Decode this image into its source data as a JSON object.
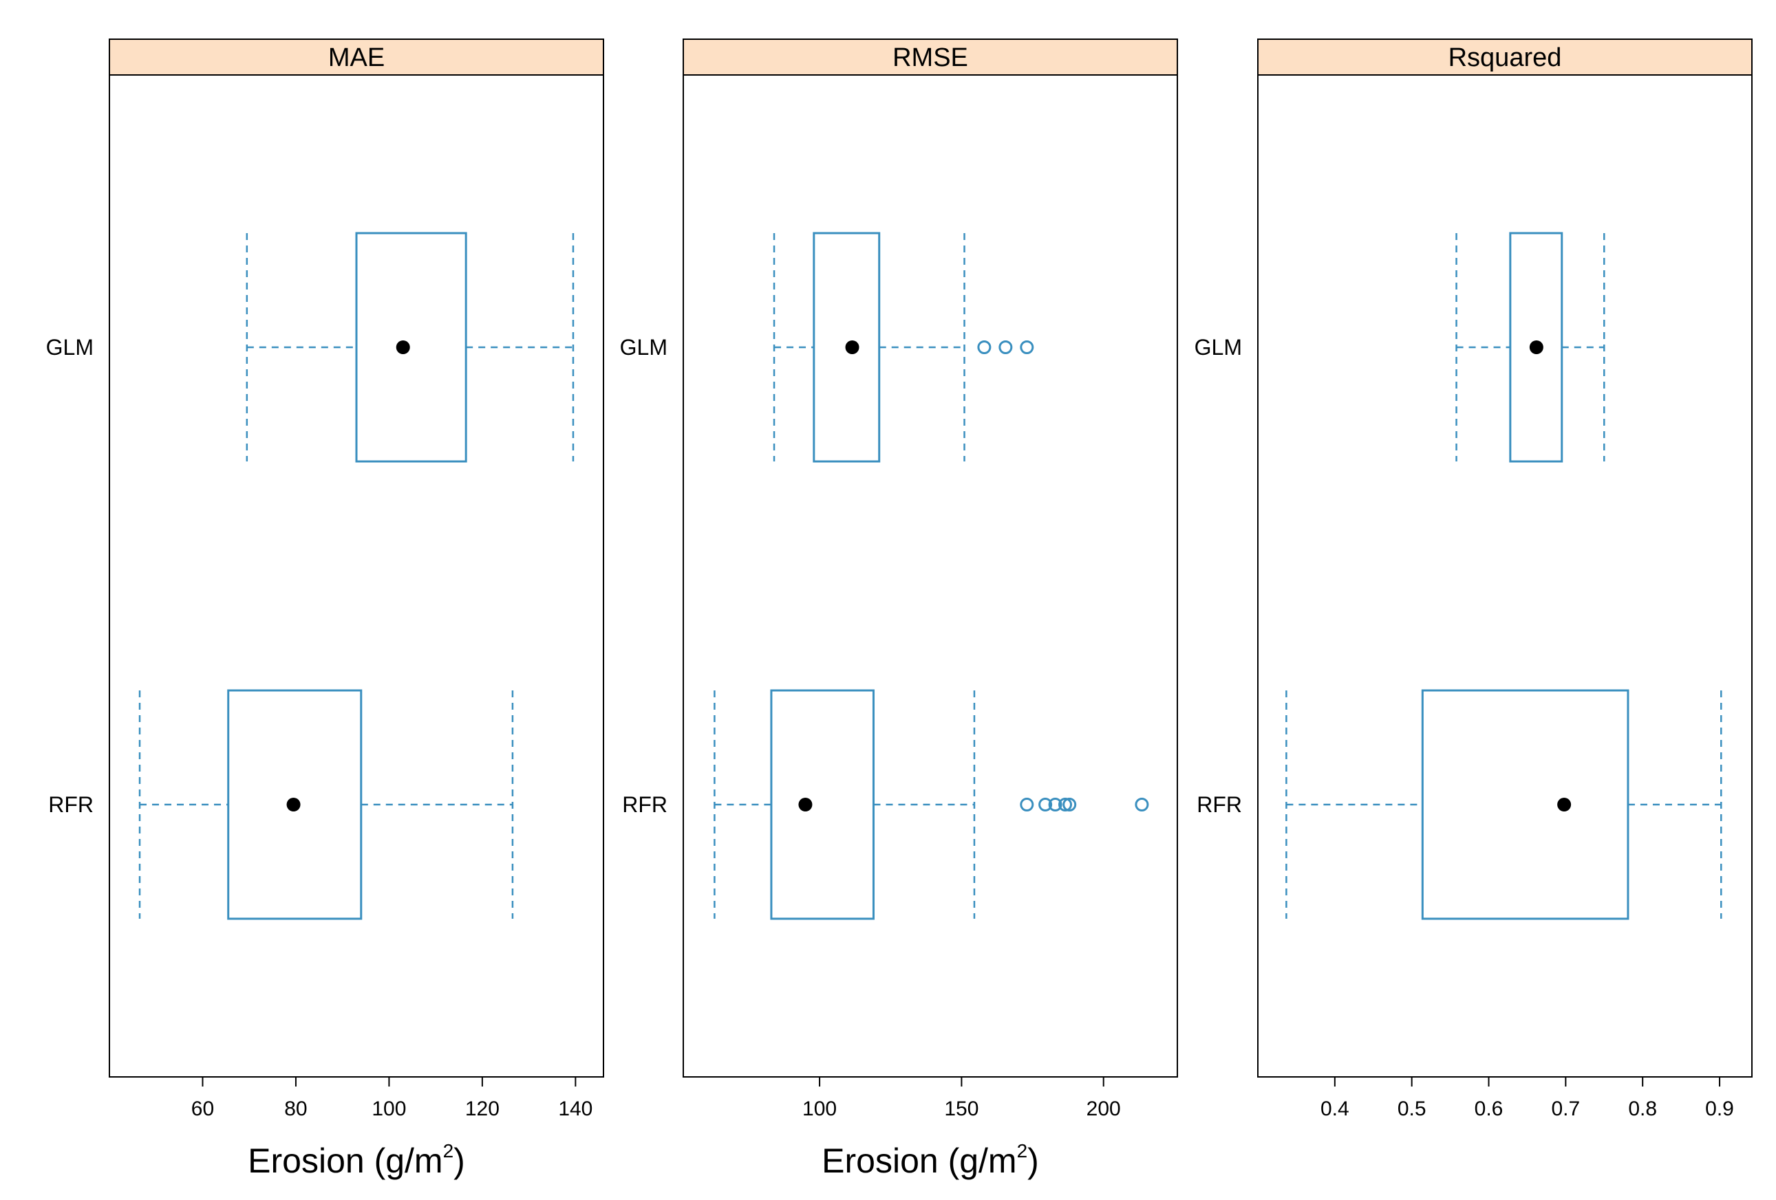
{
  "chart_data": {
    "type": "boxplot",
    "categories": [
      "GLM",
      "RFR"
    ],
    "colors": {
      "box": "#3a8fbf",
      "whisker": "#3a8fbf",
      "median_dot": "#000000",
      "strip_bg": "#fde0c5",
      "frame": "#000000"
    },
    "panels": [
      {
        "title": "MAE",
        "xlabel_main": "Erosion (g/m",
        "xlabel_sup": "2",
        "xlabel_end": ")",
        "xlim": [
          40,
          146
        ],
        "ticks": [
          60,
          80,
          100,
          120,
          140
        ],
        "tick_labels": [
          "60",
          "80",
          "100",
          "120",
          "140"
        ],
        "boxes": [
          {
            "category": "GLM",
            "whisker_low": 69.5,
            "q1": 93,
            "median": 103,
            "q3": 116.5,
            "whisker_high": 139.5,
            "outliers": []
          },
          {
            "category": "RFR",
            "whisker_low": 46.5,
            "q1": 65.5,
            "median": 79.5,
            "q3": 94,
            "whisker_high": 126.5,
            "outliers": []
          }
        ]
      },
      {
        "title": "RMSE",
        "xlabel_main": "Erosion (g/m",
        "xlabel_sup": "2",
        "xlabel_end": ")",
        "xlim": [
          52,
          226
        ],
        "ticks": [
          100,
          150,
          200
        ],
        "tick_labels": [
          "100",
          "150",
          "200"
        ],
        "boxes": [
          {
            "category": "GLM",
            "whisker_low": 84,
            "q1": 98,
            "median": 111.5,
            "q3": 121,
            "whisker_high": 151,
            "outliers": [
              158,
              165.5,
              173
            ]
          },
          {
            "category": "RFR",
            "whisker_low": 63,
            "q1": 83,
            "median": 95,
            "q3": 119,
            "whisker_high": 154.5,
            "outliers": [
              173,
              179.5,
              183,
              186.5,
              188,
              213.5
            ]
          }
        ]
      },
      {
        "title": "Rsquared",
        "xlabel_main": "",
        "xlabel_sup": "",
        "xlabel_end": "",
        "xlim": [
          0.3,
          0.942
        ],
        "ticks": [
          0.4,
          0.5,
          0.6,
          0.7,
          0.8,
          0.9
        ],
        "tick_labels": [
          "0.4",
          "0.5",
          "0.6",
          "0.7",
          "0.8",
          "0.9"
        ],
        "boxes": [
          {
            "category": "GLM",
            "whisker_low": 0.558,
            "q1": 0.628,
            "median": 0.662,
            "q3": 0.695,
            "whisker_high": 0.75,
            "outliers": []
          },
          {
            "category": "RFR",
            "whisker_low": 0.337,
            "q1": 0.514,
            "median": 0.698,
            "q3": 0.781,
            "whisker_high": 0.902,
            "outliers": []
          }
        ]
      }
    ]
  }
}
